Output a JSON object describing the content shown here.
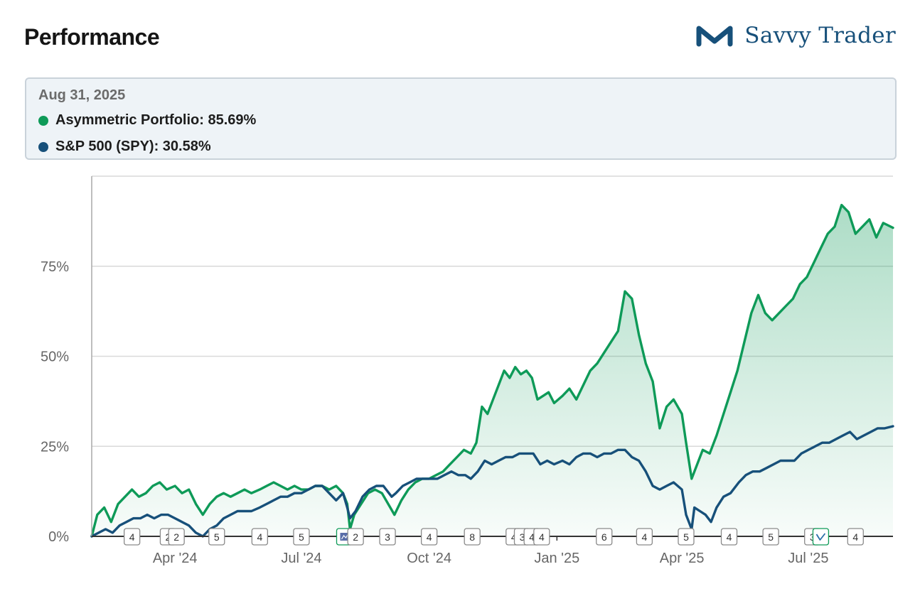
{
  "header": {
    "title": "Performance",
    "brand_name": "Savvy Trader",
    "brand_color": "#17507a"
  },
  "tooltip": {
    "date": "Aug 31, 2025",
    "rows": [
      {
        "label": "Asymmetric Portfolio: 85.69%",
        "color": "#0e9a58"
      },
      {
        "label": "S&P 500 (SPY): 30.58%",
        "color": "#17507a"
      }
    ]
  },
  "chart_data": {
    "type": "line",
    "x_axis": {
      "start": "2024-02-01",
      "end": "2025-08-31",
      "ticks": [
        {
          "date": "2024-04-01",
          "label": "Apr '24"
        },
        {
          "date": "2024-07-01",
          "label": "Jul '24"
        },
        {
          "date": "2024-10-01",
          "label": "Oct '24"
        },
        {
          "date": "2025-01-01",
          "label": "Jan '25"
        },
        {
          "date": "2025-04-01",
          "label": "Apr '25"
        },
        {
          "date": "2025-07-01",
          "label": "Jul '25"
        }
      ]
    },
    "y_axis": {
      "ylim": [
        0,
        100
      ],
      "ticks": [
        {
          "value": 0,
          "label": "0%"
        },
        {
          "value": 25,
          "label": "25%"
        },
        {
          "value": 50,
          "label": "50%"
        },
        {
          "value": 75,
          "label": "75%"
        }
      ],
      "grid": true
    },
    "series": [
      {
        "name": "Asymmetric Portfolio",
        "color": "#0e9a58",
        "area_fill": true,
        "points": [
          [
            "2024-02-01",
            0
          ],
          [
            "2024-02-05",
            6
          ],
          [
            "2024-02-10",
            8
          ],
          [
            "2024-02-15",
            4
          ],
          [
            "2024-02-20",
            9
          ],
          [
            "2024-02-25",
            11
          ],
          [
            "2024-03-01",
            13
          ],
          [
            "2024-03-06",
            11
          ],
          [
            "2024-03-11",
            12
          ],
          [
            "2024-03-16",
            14
          ],
          [
            "2024-03-21",
            15
          ],
          [
            "2024-03-26",
            13
          ],
          [
            "2024-04-01",
            14
          ],
          [
            "2024-04-06",
            12
          ],
          [
            "2024-04-11",
            13
          ],
          [
            "2024-04-16",
            9
          ],
          [
            "2024-04-21",
            6
          ],
          [
            "2024-04-26",
            9
          ],
          [
            "2024-05-01",
            11
          ],
          [
            "2024-05-06",
            12
          ],
          [
            "2024-05-11",
            11
          ],
          [
            "2024-05-16",
            12
          ],
          [
            "2024-05-21",
            13
          ],
          [
            "2024-05-26",
            12
          ],
          [
            "2024-06-01",
            13
          ],
          [
            "2024-06-06",
            14
          ],
          [
            "2024-06-11",
            15
          ],
          [
            "2024-06-16",
            14
          ],
          [
            "2024-06-21",
            13
          ],
          [
            "2024-06-26",
            14
          ],
          [
            "2024-07-01",
            13
          ],
          [
            "2024-07-06",
            13
          ],
          [
            "2024-07-11",
            14
          ],
          [
            "2024-07-16",
            14
          ],
          [
            "2024-07-21",
            13
          ],
          [
            "2024-07-26",
            14
          ],
          [
            "2024-07-31",
            12
          ],
          [
            "2024-08-03",
            9
          ],
          [
            "2024-08-05",
            2
          ],
          [
            "2024-08-08",
            6
          ],
          [
            "2024-08-13",
            9
          ],
          [
            "2024-08-18",
            12
          ],
          [
            "2024-08-23",
            13
          ],
          [
            "2024-08-28",
            12
          ],
          [
            "2024-09-03",
            8
          ],
          [
            "2024-09-06",
            6
          ],
          [
            "2024-09-11",
            10
          ],
          [
            "2024-09-16",
            13
          ],
          [
            "2024-09-21",
            15
          ],
          [
            "2024-09-26",
            16
          ],
          [
            "2024-10-01",
            16
          ],
          [
            "2024-10-06",
            17
          ],
          [
            "2024-10-11",
            18
          ],
          [
            "2024-10-16",
            20
          ],
          [
            "2024-10-21",
            22
          ],
          [
            "2024-10-26",
            24
          ],
          [
            "2024-10-31",
            23
          ],
          [
            "2024-11-04",
            26
          ],
          [
            "2024-11-08",
            36
          ],
          [
            "2024-11-12",
            34
          ],
          [
            "2024-11-16",
            38
          ],
          [
            "2024-11-20",
            42
          ],
          [
            "2024-11-24",
            46
          ],
          [
            "2024-11-28",
            44
          ],
          [
            "2024-12-02",
            47
          ],
          [
            "2024-12-06",
            45
          ],
          [
            "2024-12-10",
            46
          ],
          [
            "2024-12-14",
            44
          ],
          [
            "2024-12-18",
            38
          ],
          [
            "2024-12-22",
            39
          ],
          [
            "2024-12-26",
            40
          ],
          [
            "2024-12-30",
            37
          ],
          [
            "2025-01-05",
            39
          ],
          [
            "2025-01-10",
            41
          ],
          [
            "2025-01-15",
            38
          ],
          [
            "2025-01-20",
            42
          ],
          [
            "2025-01-25",
            46
          ],
          [
            "2025-01-30",
            48
          ],
          [
            "2025-02-04",
            51
          ],
          [
            "2025-02-09",
            54
          ],
          [
            "2025-02-14",
            57
          ],
          [
            "2025-02-19",
            68
          ],
          [
            "2025-02-24",
            66
          ],
          [
            "2025-03-01",
            56
          ],
          [
            "2025-03-06",
            48
          ],
          [
            "2025-03-11",
            43
          ],
          [
            "2025-03-16",
            30
          ],
          [
            "2025-03-21",
            36
          ],
          [
            "2025-03-26",
            38
          ],
          [
            "2025-04-01",
            34
          ],
          [
            "2025-04-04",
            26
          ],
          [
            "2025-04-08",
            16
          ],
          [
            "2025-04-12",
            20
          ],
          [
            "2025-04-16",
            24
          ],
          [
            "2025-04-21",
            23
          ],
          [
            "2025-04-26",
            28
          ],
          [
            "2025-05-01",
            34
          ],
          [
            "2025-05-06",
            40
          ],
          [
            "2025-05-11",
            46
          ],
          [
            "2025-05-16",
            54
          ],
          [
            "2025-05-21",
            62
          ],
          [
            "2025-05-26",
            67
          ],
          [
            "2025-05-31",
            62
          ],
          [
            "2025-06-05",
            60
          ],
          [
            "2025-06-10",
            62
          ],
          [
            "2025-06-15",
            64
          ],
          [
            "2025-06-20",
            66
          ],
          [
            "2025-06-25",
            70
          ],
          [
            "2025-06-30",
            72
          ],
          [
            "2025-07-05",
            76
          ],
          [
            "2025-07-10",
            80
          ],
          [
            "2025-07-15",
            84
          ],
          [
            "2025-07-20",
            86
          ],
          [
            "2025-07-25",
            92
          ],
          [
            "2025-07-30",
            90
          ],
          [
            "2025-08-04",
            84
          ],
          [
            "2025-08-09",
            86
          ],
          [
            "2025-08-14",
            88
          ],
          [
            "2025-08-19",
            83
          ],
          [
            "2025-08-24",
            87
          ],
          [
            "2025-08-31",
            85.69
          ]
        ]
      },
      {
        "name": "S&P 500 (SPY)",
        "color": "#17507a",
        "area_fill": false,
        "points": [
          [
            "2024-02-01",
            0
          ],
          [
            "2024-02-06",
            1
          ],
          [
            "2024-02-11",
            2
          ],
          [
            "2024-02-16",
            1
          ],
          [
            "2024-02-21",
            3
          ],
          [
            "2024-02-26",
            4
          ],
          [
            "2024-03-02",
            5
          ],
          [
            "2024-03-07",
            5
          ],
          [
            "2024-03-12",
            6
          ],
          [
            "2024-03-17",
            5
          ],
          [
            "2024-03-22",
            6
          ],
          [
            "2024-03-27",
            6
          ],
          [
            "2024-04-01",
            5
          ],
          [
            "2024-04-06",
            4
          ],
          [
            "2024-04-11",
            3
          ],
          [
            "2024-04-16",
            1
          ],
          [
            "2024-04-21",
            0
          ],
          [
            "2024-04-26",
            2
          ],
          [
            "2024-05-01",
            3
          ],
          [
            "2024-05-06",
            5
          ],
          [
            "2024-05-11",
            6
          ],
          [
            "2024-05-16",
            7
          ],
          [
            "2024-05-21",
            7
          ],
          [
            "2024-05-26",
            7
          ],
          [
            "2024-06-01",
            8
          ],
          [
            "2024-06-06",
            9
          ],
          [
            "2024-06-11",
            10
          ],
          [
            "2024-06-16",
            11
          ],
          [
            "2024-06-21",
            11
          ],
          [
            "2024-06-26",
            12
          ],
          [
            "2024-07-01",
            12
          ],
          [
            "2024-07-06",
            13
          ],
          [
            "2024-07-11",
            14
          ],
          [
            "2024-07-16",
            14
          ],
          [
            "2024-07-21",
            12
          ],
          [
            "2024-07-26",
            10
          ],
          [
            "2024-07-31",
            12
          ],
          [
            "2024-08-03",
            8
          ],
          [
            "2024-08-05",
            5
          ],
          [
            "2024-08-09",
            7
          ],
          [
            "2024-08-14",
            11
          ],
          [
            "2024-08-19",
            13
          ],
          [
            "2024-08-24",
            14
          ],
          [
            "2024-08-29",
            14
          ],
          [
            "2024-09-04",
            11
          ],
          [
            "2024-09-07",
            12
          ],
          [
            "2024-09-12",
            14
          ],
          [
            "2024-09-17",
            15
          ],
          [
            "2024-09-22",
            16
          ],
          [
            "2024-09-27",
            16
          ],
          [
            "2024-10-02",
            16
          ],
          [
            "2024-10-07",
            16
          ],
          [
            "2024-10-12",
            17
          ],
          [
            "2024-10-17",
            18
          ],
          [
            "2024-10-22",
            17
          ],
          [
            "2024-10-27",
            17
          ],
          [
            "2024-10-31",
            16
          ],
          [
            "2024-11-05",
            18
          ],
          [
            "2024-11-10",
            21
          ],
          [
            "2024-11-15",
            20
          ],
          [
            "2024-11-20",
            21
          ],
          [
            "2024-11-25",
            22
          ],
          [
            "2024-11-30",
            22
          ],
          [
            "2024-12-05",
            23
          ],
          [
            "2024-12-10",
            23
          ],
          [
            "2024-12-15",
            23
          ],
          [
            "2024-12-20",
            20
          ],
          [
            "2024-12-25",
            21
          ],
          [
            "2024-12-30",
            20
          ],
          [
            "2025-01-05",
            21
          ],
          [
            "2025-01-10",
            20
          ],
          [
            "2025-01-15",
            22
          ],
          [
            "2025-01-20",
            23
          ],
          [
            "2025-01-25",
            23
          ],
          [
            "2025-01-30",
            22
          ],
          [
            "2025-02-04",
            23
          ],
          [
            "2025-02-09",
            23
          ],
          [
            "2025-02-14",
            24
          ],
          [
            "2025-02-19",
            24
          ],
          [
            "2025-02-24",
            22
          ],
          [
            "2025-03-01",
            21
          ],
          [
            "2025-03-06",
            18
          ],
          [
            "2025-03-11",
            14
          ],
          [
            "2025-03-16",
            13
          ],
          [
            "2025-03-21",
            14
          ],
          [
            "2025-03-26",
            15
          ],
          [
            "2025-04-01",
            13
          ],
          [
            "2025-04-04",
            6
          ],
          [
            "2025-04-08",
            2
          ],
          [
            "2025-04-10",
            8
          ],
          [
            "2025-04-14",
            7
          ],
          [
            "2025-04-18",
            6
          ],
          [
            "2025-04-22",
            4
          ],
          [
            "2025-04-26",
            8
          ],
          [
            "2025-05-01",
            11
          ],
          [
            "2025-05-06",
            12
          ],
          [
            "2025-05-12",
            15
          ],
          [
            "2025-05-17",
            17
          ],
          [
            "2025-05-22",
            18
          ],
          [
            "2025-05-27",
            18
          ],
          [
            "2025-06-01",
            19
          ],
          [
            "2025-06-06",
            20
          ],
          [
            "2025-06-11",
            21
          ],
          [
            "2025-06-16",
            21
          ],
          [
            "2025-06-21",
            21
          ],
          [
            "2025-06-26",
            23
          ],
          [
            "2025-07-01",
            24
          ],
          [
            "2025-07-06",
            25
          ],
          [
            "2025-07-11",
            26
          ],
          [
            "2025-07-16",
            26
          ],
          [
            "2025-07-21",
            27
          ],
          [
            "2025-07-26",
            28
          ],
          [
            "2025-07-31",
            29
          ],
          [
            "2025-08-05",
            27
          ],
          [
            "2025-08-10",
            28
          ],
          [
            "2025-08-15",
            29
          ],
          [
            "2025-08-20",
            30
          ],
          [
            "2025-08-25",
            30
          ],
          [
            "2025-08-31",
            30.58
          ]
        ]
      }
    ],
    "markers": [
      {
        "date": "2024-03-01",
        "label": "4"
      },
      {
        "date": "2024-03-27",
        "label": "2"
      },
      {
        "date": "2024-04-02",
        "label": "2"
      },
      {
        "date": "2024-05-01",
        "label": "5"
      },
      {
        "date": "2024-06-01",
        "label": "4"
      },
      {
        "date": "2024-07-01",
        "label": "5"
      },
      {
        "date": "2024-08-01",
        "label": "",
        "kind": "icon-chart"
      },
      {
        "date": "2024-08-09",
        "label": "2"
      },
      {
        "date": "2024-09-01",
        "label": "3"
      },
      {
        "date": "2024-10-01",
        "label": "4"
      },
      {
        "date": "2024-11-01",
        "label": "8"
      },
      {
        "date": "2024-12-01",
        "label": "4"
      },
      {
        "date": "2024-12-07",
        "label": "3"
      },
      {
        "date": "2024-12-14",
        "label": "4"
      },
      {
        "date": "2024-12-21",
        "label": "4"
      },
      {
        "date": "2025-02-04",
        "label": "6"
      },
      {
        "date": "2025-03-05",
        "label": "4"
      },
      {
        "date": "2025-04-04",
        "label": "5"
      },
      {
        "date": "2025-05-05",
        "label": "4"
      },
      {
        "date": "2025-06-04",
        "label": "5"
      },
      {
        "date": "2025-07-04",
        "label": "3"
      },
      {
        "date": "2025-07-10",
        "label": "",
        "kind": "icon-check"
      },
      {
        "date": "2025-08-04",
        "label": "4"
      }
    ]
  }
}
